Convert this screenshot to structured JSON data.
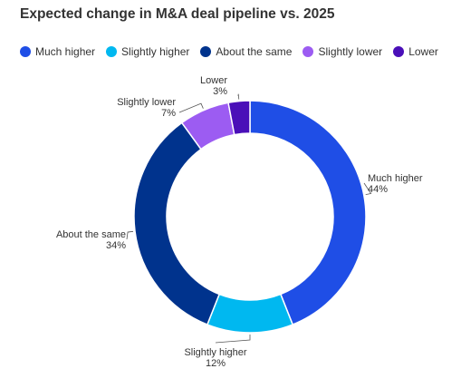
{
  "chart_data": {
    "type": "pie",
    "title": "Expected change in M&A deal pipeline vs. 2025",
    "donut": true,
    "legend_position": "top-left",
    "categories": [
      "Much higher",
      "Slightly higher",
      "About the same",
      "Slightly lower",
      "Lower"
    ],
    "values": [
      44,
      12,
      34,
      7,
      3
    ],
    "value_labels": [
      "44%",
      "12%",
      "34%",
      "7%",
      "3%"
    ],
    "colors": [
      "#1f4ee6",
      "#00b8f0",
      "#00338d",
      "#9c5cf2",
      "#4a0fb8"
    ]
  }
}
